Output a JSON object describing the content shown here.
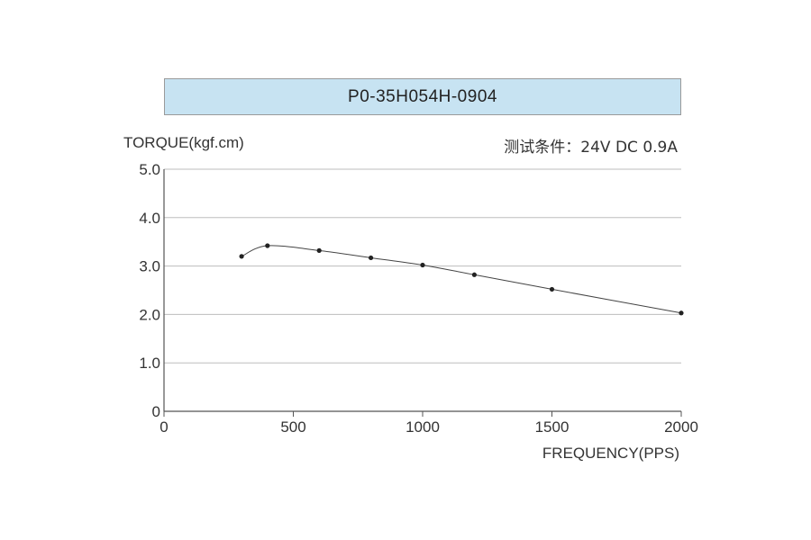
{
  "header": {
    "model": "P0-35H054H-0904"
  },
  "test_conditions": "测试条件：24V DC   0.9A",
  "colors": {
    "title_bg": "#c7e3f2",
    "line": "#444444",
    "grid": "#bdbdbd",
    "axis": "#555555"
  },
  "chart_data": {
    "type": "line",
    "ylabel": "TORQUE(kgf.cm)",
    "xlabel": "FREQUENCY(PPS)",
    "xlim": [
      0,
      2000
    ],
    "ylim": [
      0,
      5
    ],
    "x_ticks": [
      0,
      500,
      1000,
      1500,
      2000
    ],
    "y_ticks": [
      "0",
      "1.0",
      "2.0",
      "3.0",
      "4.0",
      "5.0"
    ],
    "grid": true,
    "series": [
      {
        "x": [
          300,
          400,
          600,
          800,
          1000,
          1200,
          1500,
          2000
        ],
        "y": [
          3.2,
          3.42,
          3.32,
          3.17,
          3.02,
          2.82,
          2.52,
          2.03
        ]
      }
    ]
  }
}
